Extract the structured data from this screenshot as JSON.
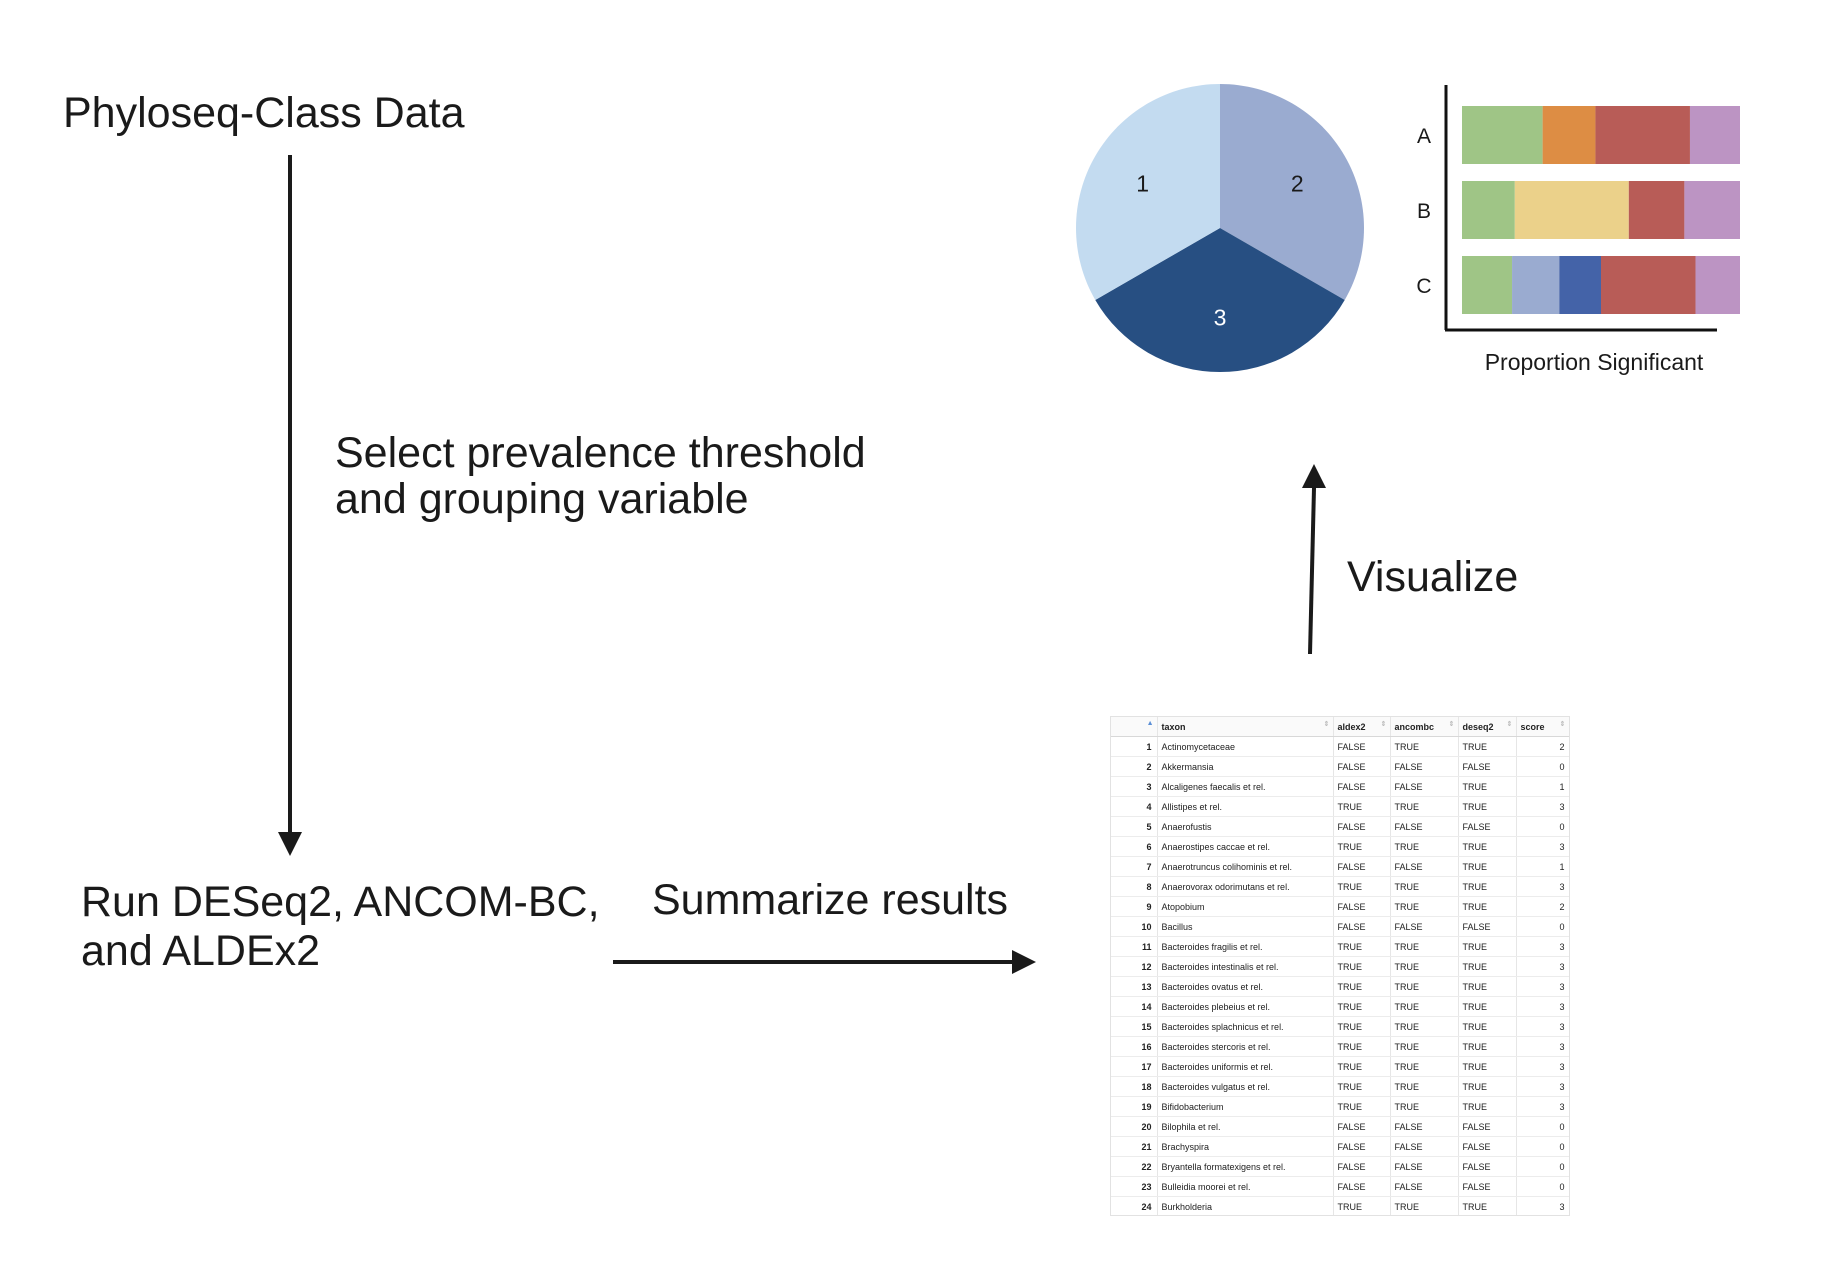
{
  "labels": {
    "phyloseq": "Phyloseq-Class Data",
    "select_line1": "Select prevalence threshold",
    "select_line2": "and grouping variable",
    "run_line1": "Run DESeq2, ANCOM-BC,",
    "run_line2": "and ALDEx2",
    "summarize": "Summarize results",
    "visualize": "Visualize"
  },
  "pie": {
    "slices": [
      {
        "label": "1",
        "fraction": 0.3333,
        "color": "#c3dbf0"
      },
      {
        "label": "2",
        "fraction": 0.3333,
        "color": "#9aabd0"
      },
      {
        "label": "3",
        "fraction": 0.3334,
        "color": "#274f82"
      }
    ]
  },
  "bar_chart": {
    "xlabel": "Proportion Significant",
    "rows": [
      {
        "label": "A",
        "segments": [
          {
            "value": 0.29,
            "color": "#9fc586"
          },
          {
            "value": 0.19,
            "color": "#dd8d44"
          },
          {
            "value": 0.34,
            "color": "#b85c57"
          },
          {
            "value": 0.18,
            "color": "#bc94c3"
          }
        ]
      },
      {
        "label": "B",
        "segments": [
          {
            "value": 0.19,
            "color": "#9fc586"
          },
          {
            "value": 0.41,
            "color": "#ebd18a"
          },
          {
            "value": 0.2,
            "color": "#b85c57"
          },
          {
            "value": 0.2,
            "color": "#bc94c3"
          }
        ]
      },
      {
        "label": "C",
        "segments": [
          {
            "value": 0.18,
            "color": "#9fc586"
          },
          {
            "value": 0.17,
            "color": "#9aabd0"
          },
          {
            "value": 0.15,
            "color": "#4463a8"
          },
          {
            "value": 0.34,
            "color": "#b85c57"
          },
          {
            "value": 0.16,
            "color": "#bc94c3"
          }
        ]
      }
    ]
  },
  "table": {
    "columns": [
      "",
      "taxon",
      "aldex2",
      "ancombc",
      "deseq2",
      "score"
    ],
    "rows": [
      [
        "1",
        "Actinomycetaceae",
        "FALSE",
        "TRUE",
        "TRUE",
        "2"
      ],
      [
        "2",
        "Akkermansia",
        "FALSE",
        "FALSE",
        "FALSE",
        "0"
      ],
      [
        "3",
        "Alcaligenes faecalis et rel.",
        "FALSE",
        "FALSE",
        "TRUE",
        "1"
      ],
      [
        "4",
        "Allistipes et rel.",
        "TRUE",
        "TRUE",
        "TRUE",
        "3"
      ],
      [
        "5",
        "Anaerofustis",
        "FALSE",
        "FALSE",
        "FALSE",
        "0"
      ],
      [
        "6",
        "Anaerostipes caccae et rel.",
        "TRUE",
        "TRUE",
        "TRUE",
        "3"
      ],
      [
        "7",
        "Anaerotruncus colihominis et rel.",
        "FALSE",
        "FALSE",
        "TRUE",
        "1"
      ],
      [
        "8",
        "Anaerovorax odorimutans et rel.",
        "TRUE",
        "TRUE",
        "TRUE",
        "3"
      ],
      [
        "9",
        "Atopobium",
        "FALSE",
        "TRUE",
        "TRUE",
        "2"
      ],
      [
        "10",
        "Bacillus",
        "FALSE",
        "FALSE",
        "FALSE",
        "0"
      ],
      [
        "11",
        "Bacteroides fragilis et rel.",
        "TRUE",
        "TRUE",
        "TRUE",
        "3"
      ],
      [
        "12",
        "Bacteroides intestinalis et rel.",
        "TRUE",
        "TRUE",
        "TRUE",
        "3"
      ],
      [
        "13",
        "Bacteroides ovatus et rel.",
        "TRUE",
        "TRUE",
        "TRUE",
        "3"
      ],
      [
        "14",
        "Bacteroides plebeius et rel.",
        "TRUE",
        "TRUE",
        "TRUE",
        "3"
      ],
      [
        "15",
        "Bacteroides splachnicus et rel.",
        "TRUE",
        "TRUE",
        "TRUE",
        "3"
      ],
      [
        "16",
        "Bacteroides stercoris et rel.",
        "TRUE",
        "TRUE",
        "TRUE",
        "3"
      ],
      [
        "17",
        "Bacteroides uniformis et rel.",
        "TRUE",
        "TRUE",
        "TRUE",
        "3"
      ],
      [
        "18",
        "Bacteroides vulgatus et rel.",
        "TRUE",
        "TRUE",
        "TRUE",
        "3"
      ],
      [
        "19",
        "Bifidobacterium",
        "TRUE",
        "TRUE",
        "TRUE",
        "3"
      ],
      [
        "20",
        "Bilophila et rel.",
        "FALSE",
        "FALSE",
        "FALSE",
        "0"
      ],
      [
        "21",
        "Brachyspira",
        "FALSE",
        "FALSE",
        "FALSE",
        "0"
      ],
      [
        "22",
        "Bryantella formatexigens et rel.",
        "FALSE",
        "FALSE",
        "FALSE",
        "0"
      ],
      [
        "23",
        "Bulleidia moorei et rel.",
        "FALSE",
        "FALSE",
        "FALSE",
        "0"
      ],
      [
        "24",
        "Burkholderia",
        "TRUE",
        "TRUE",
        "TRUE",
        "3"
      ]
    ]
  }
}
